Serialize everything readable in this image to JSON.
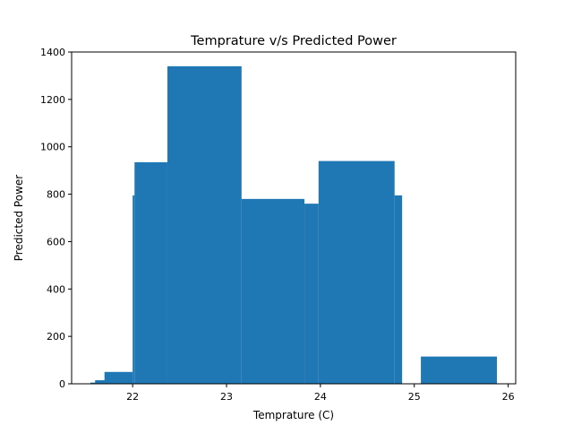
{
  "chart_data": {
    "type": "bar",
    "title": "Temprature  v/s Predicted Power",
    "xlabel": "Temprature (C)",
    "ylabel": "Predicted Power",
    "xlim": [
      21.35,
      26.08
    ],
    "ylim": [
      0,
      1400
    ],
    "xticks": [
      22,
      23,
      24,
      25,
      26
    ],
    "yticks": [
      0,
      200,
      400,
      600,
      800,
      1000,
      1200,
      1400
    ],
    "grid": false,
    "bars": [
      {
        "x0": 21.55,
        "x1": 21.65,
        "value": 5
      },
      {
        "x0": 21.6,
        "x1": 21.72,
        "value": 15
      },
      {
        "x0": 21.7,
        "x1": 22.0,
        "value": 50
      },
      {
        "x0": 22.0,
        "x1": 22.02,
        "value": 795
      },
      {
        "x0": 22.02,
        "x1": 22.37,
        "value": 935
      },
      {
        "x0": 22.37,
        "x1": 23.16,
        "value": 1340
      },
      {
        "x0": 23.16,
        "x1": 23.83,
        "value": 780
      },
      {
        "x0": 23.83,
        "x1": 23.98,
        "value": 760
      },
      {
        "x0": 23.98,
        "x1": 24.79,
        "value": 940
      },
      {
        "x0": 24.79,
        "x1": 24.87,
        "value": 795
      },
      {
        "x0": 25.07,
        "x1": 25.88,
        "value": 115
      }
    ],
    "colors": {
      "bar": "#1f77b4",
      "axis": "#000000",
      "background": "#ffffff"
    }
  }
}
